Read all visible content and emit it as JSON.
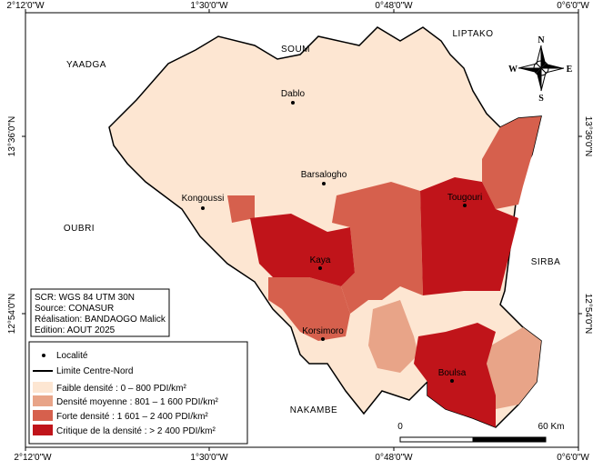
{
  "graticule": {
    "top": [
      "2°12'0\"W",
      "1°30'0\"W",
      "0°48'0\"W",
      "0°6'0\"W"
    ],
    "bottom": [
      "2°12'0\"W",
      "1°30'0\"W",
      "0°48'0\"W",
      "0°6'0\"W"
    ],
    "left": [
      "13°36'0\"N",
      "12°54'0\"N"
    ],
    "right": [
      "13°36'0\"N",
      "12°54'0\"N"
    ]
  },
  "regions": [
    "YAADGA",
    "SOUM",
    "LIPTAKO",
    "OUBRI",
    "SIRBA",
    "NAKAMBE"
  ],
  "towns": [
    "Dablo",
    "Barsalogho",
    "Kongoussi",
    "Tougouri",
    "Kaya",
    "Korsimoro",
    "Boulsa"
  ],
  "compass": {
    "n": "N",
    "s": "S",
    "e": "E",
    "w": "W"
  },
  "info": [
    "SCR: WGS 84 UTM 30N",
    "Source: CONASUR",
    "Réalisation: BANDAOGO Malick",
    "Edition: AOUT 2025"
  ],
  "legend": [
    "Localité",
    "Limite Centre-Nord",
    "Faible densité : 0 – 800 PDI/km²",
    "Densité moyenne : 801 – 1 600 PDI/km²",
    "Forte densité : 1 601 – 2 400 PDI/km²",
    "Critique de la densité : > 2 400 PDI/km²"
  ],
  "scale": {
    "start": "0",
    "end": "60 Km"
  }
}
